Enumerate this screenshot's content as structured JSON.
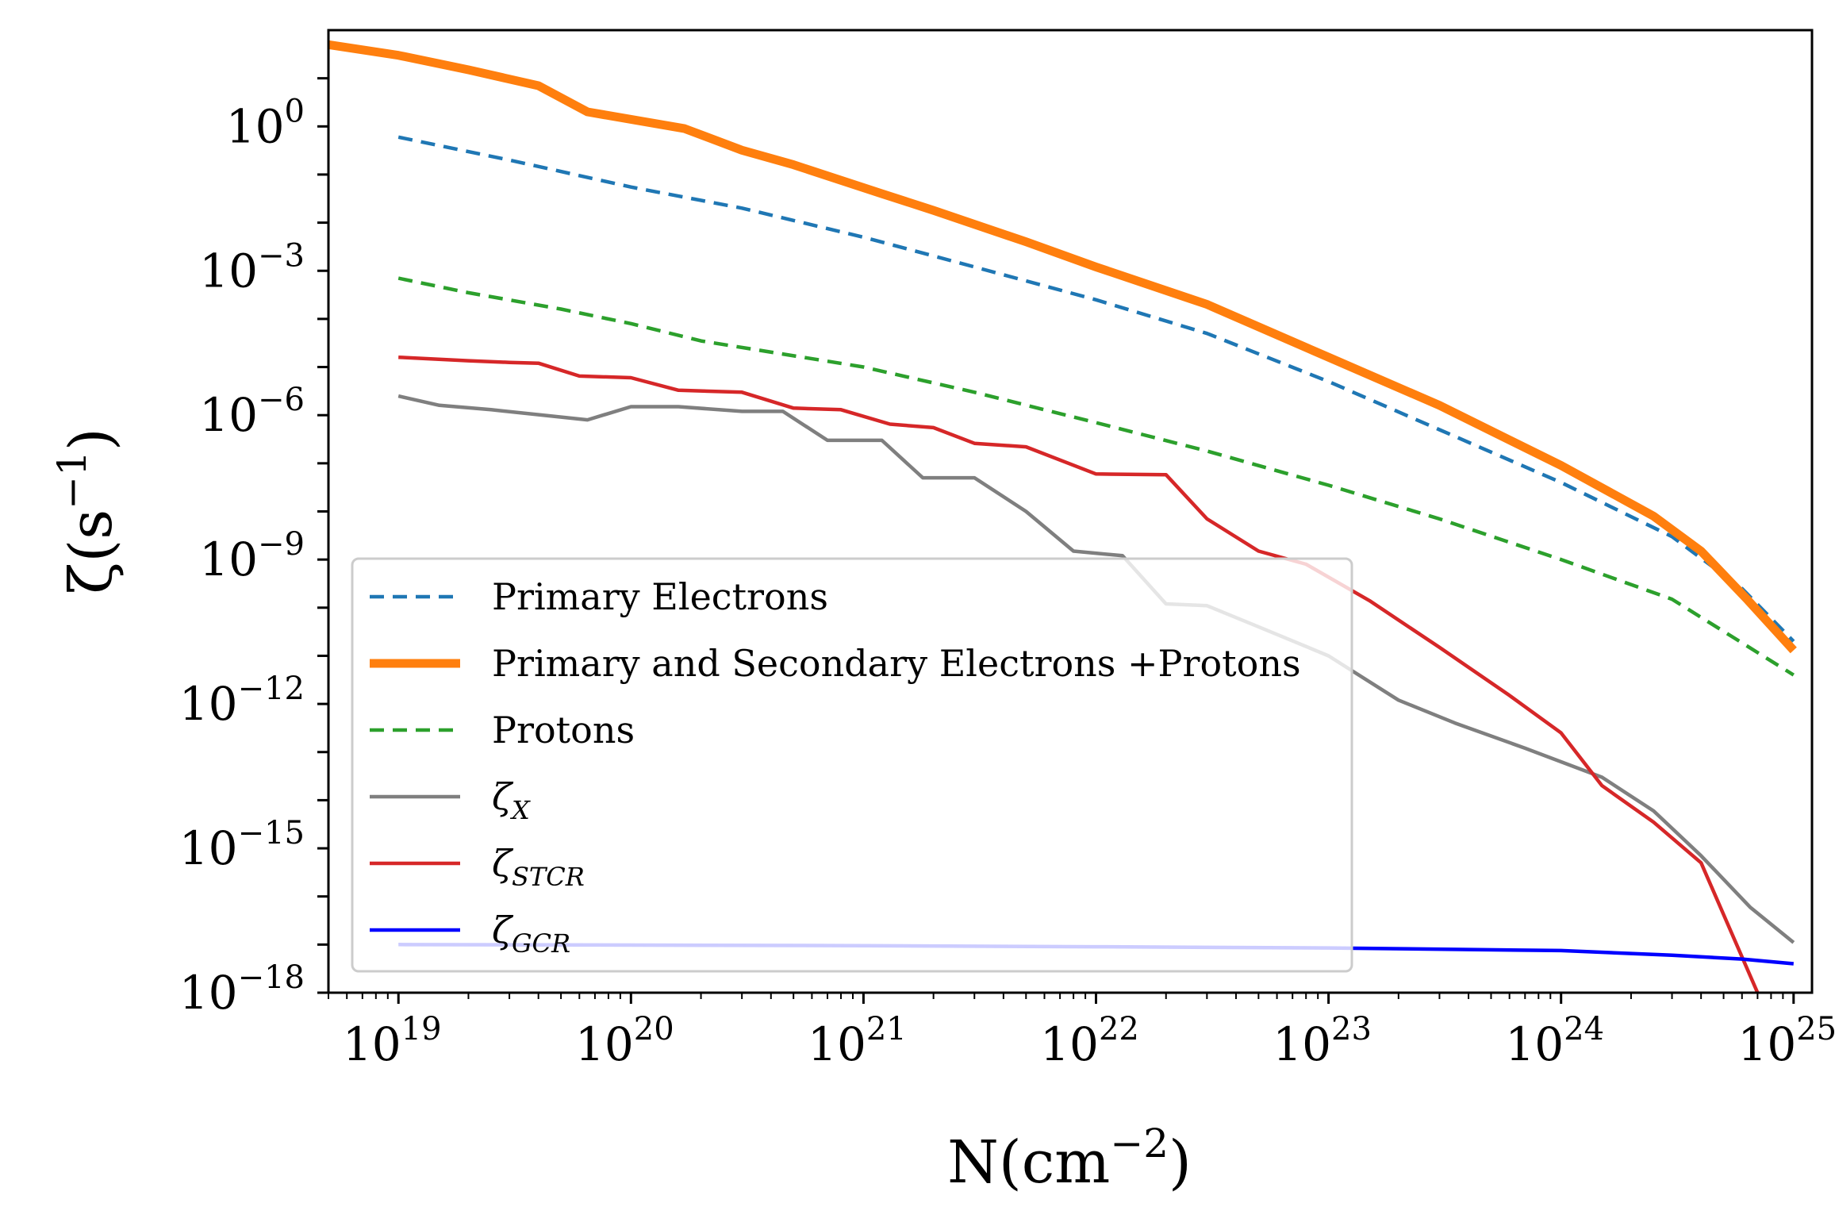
{
  "chart_data": {
    "type": "line",
    "xscale": "log",
    "yscale": "log",
    "xlim": [
      5e+18,
      1.2e+25
    ],
    "ylim": [
      1e-18,
      100.0
    ],
    "xlabel": {
      "base": "N(cm",
      "sup": "−2",
      "close": ")"
    },
    "ylabel": {
      "base": "ζ(s",
      "sup": "−1",
      "close": ")"
    },
    "xticks": [
      {
        "value": 1e+19,
        "base": "10",
        "exp": "19"
      },
      {
        "value": 1e+20,
        "base": "10",
        "exp": "20"
      },
      {
        "value": 1e+21,
        "base": "10",
        "exp": "21"
      },
      {
        "value": 1e+22,
        "base": "10",
        "exp": "22"
      },
      {
        "value": 1e+23,
        "base": "10",
        "exp": "23"
      },
      {
        "value": 1e+24,
        "base": "10",
        "exp": "24"
      },
      {
        "value": 1e+25,
        "base": "10",
        "exp": "25"
      }
    ],
    "yticks": [
      {
        "value": 1,
        "base": "10",
        "exp": "0"
      },
      {
        "value": 0.001,
        "base": "10",
        "exp": "−3"
      },
      {
        "value": 1e-06,
        "base": "10",
        "exp": "−6"
      },
      {
        "value": 1e-09,
        "base": "10",
        "exp": "−9"
      },
      {
        "value": 1e-12,
        "base": "10",
        "exp": "−12"
      },
      {
        "value": 1e-15,
        "base": "10",
        "exp": "−15"
      },
      {
        "value": 1e-18,
        "base": "10",
        "exp": "−18"
      }
    ],
    "legend_position": "lower-left",
    "series": [
      {
        "id": "primary-electrons",
        "name": "Primary Electrons",
        "color": "#1f77b4",
        "dash": "dashed",
        "width": "normal",
        "points": [
          [
            1e+19,
            0.6
          ],
          [
            3e+19,
            0.2
          ],
          [
            1e+20,
            0.055
          ],
          [
            3e+20,
            0.02
          ],
          [
            1e+21,
            0.005
          ],
          [
            3e+21,
            0.0012
          ],
          [
            1e+22,
            0.00025
          ],
          [
            3e+22,
            5e-05
          ],
          [
            1e+23,
            5e-06
          ],
          [
            3e+23,
            5e-07
          ],
          [
            1e+24,
            4e-08
          ],
          [
            3e+24,
            3e-09
          ],
          [
            6e+24,
            2.5e-10
          ],
          [
            1e+25,
            2e-11
          ]
        ]
      },
      {
        "id": "primary-secondary-electrons-protons",
        "name": "Primary and Secondary Electrons +Protons",
        "color": "#ff7f0e",
        "dash": "solid",
        "width": "thick",
        "points": [
          [
            5e+18,
            50
          ],
          [
            1e+19,
            30
          ],
          [
            2e+19,
            15
          ],
          [
            4e+19,
            7
          ],
          [
            6.5e+19,
            2
          ],
          [
            1.7e+20,
            0.9
          ],
          [
            3e+20,
            0.32
          ],
          [
            5e+20,
            0.16
          ],
          [
            1.2e+21,
            0.04
          ],
          [
            2e+21,
            0.018
          ],
          [
            5e+21,
            0.004
          ],
          [
            1e+22,
            0.0012
          ],
          [
            3e+22,
            0.0002
          ],
          [
            1e+23,
            1.6e-05
          ],
          [
            3e+23,
            1.6e-06
          ],
          [
            1e+24,
            9e-08
          ],
          [
            2.5e+24,
            8e-09
          ],
          [
            4e+24,
            1.5e-09
          ],
          [
            6.3e+24,
            1.5e-10
          ],
          [
            1e+25,
            1.3e-11
          ]
        ]
      },
      {
        "id": "protons",
        "name": "Protons",
        "color": "#2ca02c",
        "dash": "dashed",
        "width": "normal",
        "points": [
          [
            1e+19,
            0.0007
          ],
          [
            2e+19,
            0.00035
          ],
          [
            5e+19,
            0.00016
          ],
          [
            1e+20,
            8e-05
          ],
          [
            2e+20,
            3.5e-05
          ],
          [
            1e+21,
            1e-05
          ],
          [
            3e+21,
            3e-06
          ],
          [
            1e+22,
            7e-07
          ],
          [
            3e+22,
            1.8e-07
          ],
          [
            1e+23,
            3.5e-08
          ],
          [
            3e+23,
            7e-09
          ],
          [
            1e+24,
            1e-09
          ],
          [
            3e+24,
            1.5e-10
          ],
          [
            1e+25,
            4e-12
          ]
        ]
      },
      {
        "id": "zeta-x",
        "name": "ζ_X",
        "legend_main": "ζ",
        "legend_sub": "X",
        "color": "#7f7f7f",
        "dash": "solid",
        "width": "normal",
        "points": [
          [
            1e+19,
            2.5e-06
          ],
          [
            1.5e+19,
            1.6e-06
          ],
          [
            2.5e+19,
            1.3e-06
          ],
          [
            4.2e+19,
            1e-06
          ],
          [
            6.5e+19,
            8e-07
          ],
          [
            1e+20,
            1.5e-06
          ],
          [
            1.6e+20,
            1.5e-06
          ],
          [
            3e+20,
            1.2e-06
          ],
          [
            4.5e+20,
            1.2e-06
          ],
          [
            7e+20,
            3e-07
          ],
          [
            1.2e+21,
            3e-07
          ],
          [
            1.8e+21,
            5e-08
          ],
          [
            3e+21,
            5e-08
          ],
          [
            5e+21,
            1e-08
          ],
          [
            8e+21,
            1.5e-09
          ],
          [
            1.3e+22,
            1.2e-09
          ],
          [
            2e+22,
            1.2e-10
          ],
          [
            3e+22,
            1.1e-10
          ],
          [
            5e+22,
            4e-11
          ],
          [
            1e+23,
            1e-11
          ],
          [
            2e+23,
            1.2e-12
          ],
          [
            3.5e+23,
            4e-13
          ],
          [
            7e+23,
            1.2e-13
          ],
          [
            1.5e+24,
            3e-14
          ],
          [
            2.5e+24,
            6e-15
          ],
          [
            4e+24,
            7e-16
          ],
          [
            6.5e+24,
            6e-17
          ],
          [
            1e+25,
            1.1e-17
          ]
        ]
      },
      {
        "id": "zeta-stcr",
        "name": "ζ_STCR",
        "legend_main": "ζ",
        "legend_sub": "STCR",
        "color": "#d62728",
        "dash": "solid",
        "width": "normal",
        "points": [
          [
            1e+19,
            1.6e-05
          ],
          [
            2e+19,
            1.35e-05
          ],
          [
            3e+19,
            1.25e-05
          ],
          [
            4e+19,
            1.2e-05
          ],
          [
            6e+19,
            6.5e-06
          ],
          [
            1e+20,
            6e-06
          ],
          [
            1.6e+20,
            3.3e-06
          ],
          [
            3e+20,
            3e-06
          ],
          [
            5e+20,
            1.4e-06
          ],
          [
            8e+20,
            1.3e-06
          ],
          [
            1.3e+21,
            6.5e-07
          ],
          [
            2e+21,
            5.5e-07
          ],
          [
            3e+21,
            2.6e-07
          ],
          [
            5e+21,
            2.2e-07
          ],
          [
            1e+22,
            6e-08
          ],
          [
            2e+22,
            5.8e-08
          ],
          [
            3e+22,
            7e-09
          ],
          [
            5e+22,
            1.5e-09
          ],
          [
            8e+22,
            8e-10
          ],
          [
            1.5e+23,
            1.4e-10
          ],
          [
            3e+23,
            1.5e-11
          ],
          [
            6e+23,
            1.5e-12
          ],
          [
            1e+24,
            2.5e-13
          ],
          [
            1.5e+24,
            2e-14
          ],
          [
            2.5e+24,
            3.5e-15
          ],
          [
            4e+24,
            5e-16
          ],
          [
            7e+24,
            1e-18
          ]
        ]
      },
      {
        "id": "zeta-gcr",
        "name": "ζ_GCR",
        "legend_main": "ζ",
        "legend_sub": "GCR",
        "color": "#0000ff",
        "dash": "solid",
        "width": "normal",
        "points": [
          [
            1e+19,
            1e-17
          ],
          [
            1e+21,
            9.5e-18
          ],
          [
            1e+22,
            9e-18
          ],
          [
            1e+23,
            8.5e-18
          ],
          [
            1e+24,
            7.5e-18
          ],
          [
            3e+24,
            6e-18
          ],
          [
            6e+24,
            5e-18
          ],
          [
            1e+25,
            4e-18
          ]
        ]
      }
    ]
  }
}
